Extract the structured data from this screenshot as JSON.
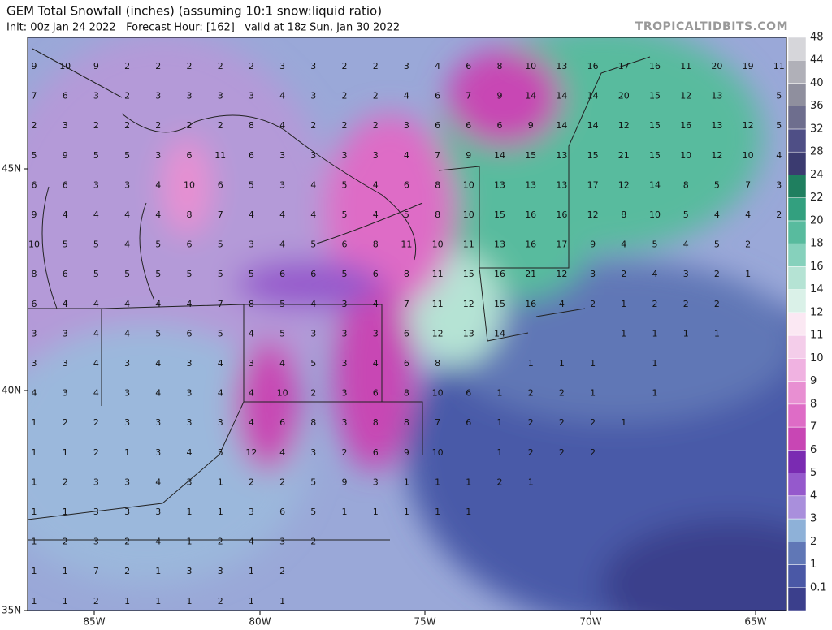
{
  "header": {
    "title": "GEM Total Snowfall (inches) (assuming 10:1 snow:liquid ratio)",
    "subtitle": "Init: 00z Jan 24 2022   Forecast Hour: [162]   valid at 18z Sun, Jan 30 2022",
    "brand": "TROPICALTIDBITS.COM"
  },
  "colorbar": {
    "levels": [
      "0.1",
      "1",
      "2",
      "3",
      "4",
      "5",
      "6",
      "7",
      "8",
      "9",
      "10",
      "11",
      "12",
      "14",
      "16",
      "18",
      "20",
      "22",
      "24",
      "28",
      "32",
      "36",
      "40",
      "44",
      "48"
    ],
    "colors": [
      "#3b3f8c",
      "#4a58a6",
      "#6077b6",
      "#8eb1d8",
      "#a98fdc",
      "#9559cc",
      "#7a2bb2",
      "#c846b4",
      "#de6cc6",
      "#e88fd2",
      "#f0b2e1",
      "#f4cdea",
      "#fbe8f3",
      "#daf1e8",
      "#b5e3d4",
      "#86d1bc",
      "#58bb9e",
      "#33a07f",
      "#1f7f5f",
      "#3b3b70",
      "#4f4f86",
      "#6e6e8e",
      "#8f8f9e",
      "#b0b0b8",
      "#d6d6da"
    ]
  },
  "axes": {
    "lon_labels": [
      "85W",
      "80W",
      "75W",
      "70W",
      "65W"
    ],
    "lat_labels": [
      "45N",
      "40N",
      "35N"
    ]
  },
  "grid_values": [
    [
      9,
      10,
      9,
      2,
      2,
      2,
      2,
      2,
      3,
      3,
      2,
      2,
      3,
      4,
      6,
      8,
      10,
      13,
      16,
      17,
      16,
      11,
      20,
      19,
      11
    ],
    [
      7,
      6,
      3,
      2,
      3,
      3,
      3,
      3,
      4,
      3,
      2,
      2,
      4,
      6,
      7,
      9,
      14,
      14,
      14,
      20,
      15,
      12,
      13,
      null,
      5
    ],
    [
      2,
      3,
      2,
      2,
      2,
      2,
      2,
      8,
      4,
      2,
      2,
      2,
      3,
      6,
      6,
      6,
      9,
      14,
      14,
      12,
      15,
      16,
      13,
      12,
      5
    ],
    [
      5,
      9,
      5,
      5,
      3,
      6,
      11,
      6,
      3,
      3,
      3,
      3,
      4,
      7,
      9,
      14,
      15,
      13,
      15,
      21,
      15,
      10,
      12,
      10,
      4
    ],
    [
      6,
      6,
      3,
      3,
      4,
      10,
      6,
      5,
      3,
      4,
      5,
      4,
      6,
      8,
      10,
      13,
      13,
      13,
      17,
      12,
      14,
      8,
      5,
      7,
      3
    ],
    [
      9,
      4,
      4,
      4,
      4,
      8,
      7,
      4,
      4,
      4,
      5,
      4,
      5,
      8,
      10,
      15,
      16,
      16,
      12,
      8,
      10,
      5,
      4,
      4,
      2
    ],
    [
      10,
      5,
      5,
      4,
      5,
      6,
      5,
      3,
      4,
      5,
      6,
      8,
      11,
      10,
      11,
      13,
      16,
      17,
      9,
      4,
      5,
      4,
      5,
      2,
      null
    ],
    [
      8,
      6,
      5,
      5,
      5,
      5,
      5,
      5,
      6,
      6,
      5,
      6,
      8,
      11,
      15,
      16,
      21,
      12,
      3,
      2,
      4,
      3,
      2,
      1,
      null
    ],
    [
      6,
      4,
      4,
      4,
      4,
      4,
      7,
      8,
      5,
      4,
      3,
      4,
      7,
      11,
      12,
      15,
      16,
      4,
      2,
      1,
      2,
      2,
      2,
      null,
      null
    ],
    [
      3,
      3,
      4,
      4,
      5,
      6,
      5,
      4,
      5,
      3,
      3,
      3,
      6,
      12,
      13,
      14,
      null,
      null,
      null,
      1,
      1,
      1,
      1,
      null,
      null
    ],
    [
      3,
      3,
      4,
      3,
      4,
      3,
      4,
      3,
      4,
      5,
      3,
      4,
      6,
      8,
      null,
      null,
      1,
      1,
      1,
      null,
      1,
      null,
      null,
      null,
      null
    ],
    [
      4,
      3,
      4,
      3,
      4,
      3,
      4,
      4,
      10,
      2,
      3,
      6,
      8,
      10,
      6,
      1,
      2,
      2,
      1,
      null,
      1,
      null,
      null,
      null,
      null
    ],
    [
      1,
      2,
      2,
      3,
      3,
      3,
      3,
      4,
      6,
      8,
      3,
      8,
      8,
      7,
      6,
      1,
      2,
      2,
      2,
      1,
      null,
      null,
      null,
      null,
      null
    ],
    [
      1,
      1,
      2,
      1,
      3,
      4,
      5,
      12,
      4,
      3,
      2,
      6,
      9,
      10,
      null,
      1,
      2,
      2,
      2,
      null,
      null,
      null,
      null,
      null,
      null
    ],
    [
      1,
      2,
      3,
      3,
      4,
      3,
      1,
      2,
      2,
      5,
      9,
      3,
      1,
      1,
      1,
      2,
      1,
      null,
      null,
      null,
      null,
      null,
      null,
      null,
      null
    ],
    [
      1,
      1,
      3,
      3,
      3,
      1,
      1,
      3,
      6,
      5,
      1,
      1,
      1,
      1,
      1,
      null,
      null,
      null,
      null,
      null,
      null,
      null,
      null,
      null,
      null
    ],
    [
      1,
      2,
      3,
      2,
      4,
      1,
      2,
      4,
      3,
      2,
      null,
      null,
      null,
      null,
      null,
      null,
      null,
      null,
      null,
      null,
      null,
      null,
      null,
      null,
      null
    ],
    [
      1,
      1,
      7,
      2,
      1,
      3,
      3,
      1,
      2,
      null,
      null,
      null,
      null,
      null,
      null,
      null,
      null,
      null,
      null,
      null,
      null,
      null,
      null,
      null,
      null
    ],
    [
      1,
      1,
      2,
      1,
      1,
      1,
      2,
      1,
      1,
      null,
      null,
      null,
      null,
      null,
      null,
      null,
      null,
      null,
      null,
      null,
      null,
      null,
      null,
      null,
      null
    ]
  ]
}
